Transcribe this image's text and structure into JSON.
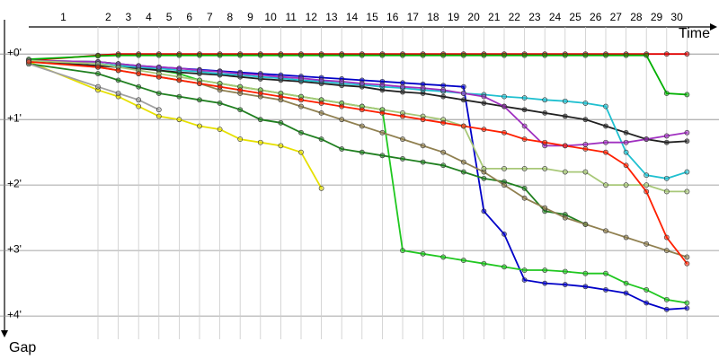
{
  "chart_data": {
    "type": "line",
    "x_label": "Time",
    "y_label": "Gap",
    "x": [
      0,
      1,
      2,
      3,
      4,
      5,
      6,
      7,
      8,
      9,
      10,
      11,
      12,
      13,
      14,
      15,
      16,
      17,
      18,
      19,
      20,
      21,
      22,
      23,
      24,
      25,
      26,
      27,
      28,
      29,
      30
    ],
    "xticks": [
      1,
      2,
      3,
      4,
      5,
      6,
      7,
      8,
      9,
      10,
      11,
      12,
      13,
      14,
      15,
      16,
      17,
      18,
      19,
      20,
      21,
      22,
      23,
      24,
      25,
      26,
      27,
      28,
      29,
      30
    ],
    "ylim": [
      -0.4,
      4.3
    ],
    "yticks": [
      {
        "value": 0,
        "label": "+0'"
      },
      {
        "value": 1,
        "label": "+1'"
      },
      {
        "value": 2,
        "label": "+2'"
      },
      {
        "value": 3,
        "label": "+3'"
      },
      {
        "value": 4,
        "label": "+4'"
      }
    ],
    "grid": true,
    "series": [
      {
        "color": "#e00000",
        "values": [
          0.1,
          0.02,
          0,
          0,
          0,
          0,
          0,
          0,
          0,
          0,
          0,
          0,
          0,
          0,
          0,
          0,
          0,
          0,
          0,
          0,
          0,
          0,
          0,
          0,
          0,
          0,
          0,
          0,
          0,
          0,
          0
        ]
      },
      {
        "color": "#00b000",
        "values": [
          0.08,
          0.03,
          0.02,
          0.02,
          0.02,
          0.02,
          0.02,
          0.02,
          0.02,
          0.02,
          0.02,
          0.02,
          0.02,
          0.02,
          0.02,
          0.02,
          0.02,
          0.02,
          0.02,
          0.02,
          0.02,
          0.02,
          0.02,
          0.02,
          0.02,
          0.02,
          0.02,
          0.02,
          0.02,
          0.6,
          0.62
        ]
      },
      {
        "color": "#0000c8",
        "values": [
          0.1,
          0.12,
          0.15,
          0.18,
          0.2,
          0.22,
          0.24,
          0.26,
          0.28,
          0.3,
          0.32,
          0.34,
          0.36,
          0.38,
          0.4,
          0.42,
          0.44,
          0.46,
          0.48,
          0.5,
          2.4,
          2.75,
          3.45,
          3.5,
          3.52,
          3.55,
          3.6,
          3.65,
          3.8,
          3.9,
          3.88
        ]
      },
      {
        "color": "#20c820",
        "values": [
          0.1,
          0.12,
          0.15,
          0.2,
          0.25,
          0.3,
          0.4,
          0.45,
          0.5,
          0.55,
          0.6,
          0.65,
          0.7,
          0.75,
          0.8,
          0.85,
          3.0,
          3.05,
          3.1,
          3.15,
          3.2,
          3.25,
          3.3,
          3.3,
          3.32,
          3.35,
          3.35,
          3.5,
          3.6,
          3.75,
          3.8
        ]
      },
      {
        "color": "#e6e000",
        "values": [
          0.12,
          0.55,
          0.65,
          0.8,
          0.95,
          1.0,
          1.1,
          1.15,
          1.3,
          1.35,
          1.4,
          1.5,
          2.05,
          null,
          null,
          null,
          null,
          null,
          null,
          null,
          null,
          null,
          null,
          null,
          null,
          null,
          null,
          null,
          null,
          null,
          null
        ]
      },
      {
        "color": "#208020",
        "values": [
          0.15,
          0.3,
          0.4,
          0.5,
          0.6,
          0.65,
          0.7,
          0.75,
          0.85,
          1.0,
          1.05,
          1.2,
          1.3,
          1.45,
          1.5,
          1.55,
          1.6,
          1.65,
          1.7,
          1.8,
          1.9,
          1.95,
          2.05,
          2.4,
          2.45,
          2.6,
          null,
          null,
          null,
          null,
          null
        ]
      },
      {
        "color": "#908050",
        "values": [
          0.1,
          0.2,
          0.25,
          0.3,
          0.35,
          0.4,
          0.45,
          0.55,
          0.6,
          0.65,
          0.7,
          0.8,
          0.9,
          1.0,
          1.1,
          1.2,
          1.3,
          1.4,
          1.5,
          1.65,
          1.8,
          2.0,
          2.2,
          2.35,
          2.5,
          2.6,
          2.7,
          2.8,
          2.9,
          3.0,
          3.1
        ]
      },
      {
        "color": "#a0a0a0",
        "values": [
          0.15,
          0.5,
          0.6,
          0.7,
          0.85,
          null,
          null,
          null,
          null,
          null,
          null,
          null,
          null,
          null,
          null,
          null,
          null,
          null,
          null,
          null,
          null,
          null,
          null,
          null,
          null,
          null,
          null,
          null,
          null,
          null,
          null
        ]
      },
      {
        "color": "#202020",
        "values": [
          0.1,
          0.18,
          0.2,
          0.22,
          0.25,
          0.28,
          0.3,
          0.32,
          0.35,
          0.38,
          0.4,
          0.42,
          0.45,
          0.48,
          0.5,
          0.55,
          0.58,
          0.6,
          0.65,
          0.7,
          0.75,
          0.8,
          0.85,
          0.9,
          0.95,
          1.0,
          1.1,
          1.2,
          1.3,
          1.35,
          1.33
        ]
      },
      {
        "color": "#20c0d0",
        "values": [
          0.1,
          0.15,
          0.18,
          0.2,
          0.22,
          0.25,
          0.27,
          0.3,
          0.32,
          0.35,
          0.37,
          0.4,
          0.42,
          0.45,
          0.47,
          0.5,
          0.52,
          0.55,
          0.57,
          0.6,
          0.62,
          0.65,
          0.67,
          0.7,
          0.72,
          0.75,
          0.8,
          1.5,
          1.85,
          1.9,
          1.8
        ]
      },
      {
        "color": "#a030c0",
        "values": [
          0.1,
          0.12,
          0.15,
          0.18,
          0.2,
          0.22,
          0.25,
          0.27,
          0.3,
          0.32,
          0.35,
          0.37,
          0.4,
          0.42,
          0.45,
          0.47,
          0.5,
          0.52,
          0.55,
          0.6,
          0.65,
          0.8,
          1.1,
          1.4,
          1.4,
          1.38,
          1.35,
          1.35,
          1.3,
          1.25,
          1.2
        ]
      },
      {
        "color": "#a8c878",
        "values": [
          0.1,
          0.15,
          0.2,
          0.25,
          0.3,
          0.35,
          0.4,
          0.45,
          0.5,
          0.55,
          0.6,
          0.65,
          0.7,
          0.75,
          0.8,
          0.85,
          0.9,
          0.95,
          1.0,
          1.1,
          1.75,
          1.75,
          1.75,
          1.75,
          1.8,
          1.8,
          2.0,
          2.0,
          2.0,
          2.1,
          2.1
        ]
      },
      {
        "color": "#ff2000",
        "values": [
          0.12,
          0.2,
          0.25,
          0.3,
          0.35,
          0.4,
          0.45,
          0.5,
          0.55,
          0.6,
          0.65,
          0.7,
          0.75,
          0.8,
          0.85,
          0.9,
          0.95,
          1.0,
          1.05,
          1.1,
          1.15,
          1.2,
          1.3,
          1.35,
          1.4,
          1.45,
          1.5,
          1.7,
          2.1,
          2.8,
          3.2
        ]
      }
    ]
  }
}
